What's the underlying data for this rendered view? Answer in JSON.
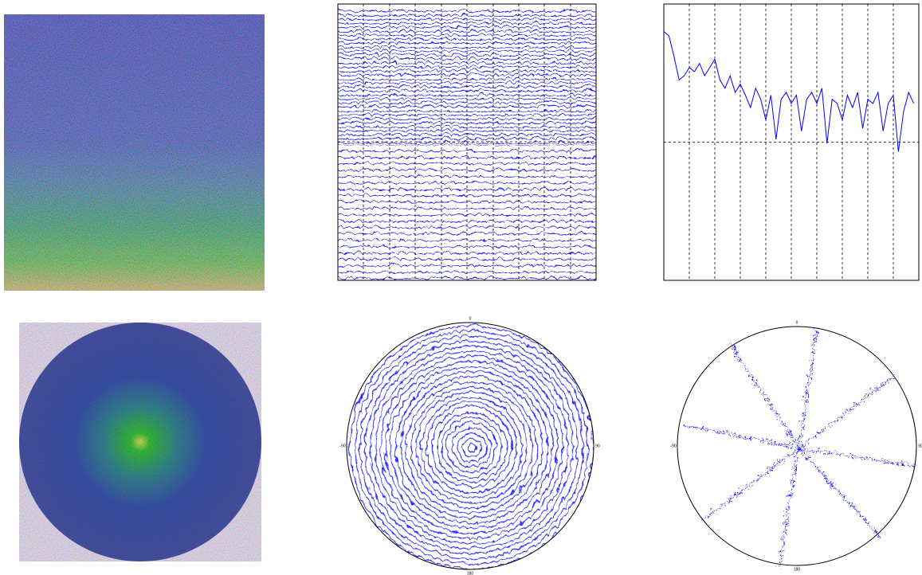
{
  "chart_data": [
    {
      "type": "line",
      "x": [
        0,
        2,
        4,
        6,
        8,
        10,
        12,
        14,
        16,
        18,
        20,
        22,
        24,
        26,
        28,
        30,
        32,
        34,
        36,
        38,
        40,
        42,
        44,
        46,
        48,
        50,
        52,
        54,
        56,
        58,
        60,
        62,
        64,
        66,
        68,
        70,
        72,
        74,
        76,
        78,
        80,
        82,
        84,
        86,
        88,
        90,
        92,
        94,
        96,
        98
      ],
      "series": [
        {
          "color": "#0000ff",
          "values": [
            0.8,
            0.77,
            0.62,
            0.45,
            0.48,
            0.54,
            0.51,
            0.57,
            0.48,
            0.54,
            0.6,
            0.45,
            0.39,
            0.48,
            0.36,
            0.42,
            0.34,
            0.25,
            0.39,
            0.31,
            0.16,
            0.34,
            0.02,
            0.31,
            0.36,
            0.28,
            0.34,
            0.08,
            0.31,
            0.36,
            0.28,
            0.39,
            -0.01,
            0.31,
            0.28,
            0.16,
            0.34,
            0.25,
            0.36,
            0.1,
            0.31,
            0.28,
            0.36,
            0.08,
            0.28,
            0.34,
            -0.07,
            0.22,
            0.36,
            0.28
          ]
        }
      ],
      "xlim": [
        0,
        100
      ],
      "xticks": [
        10,
        20,
        30,
        40,
        50,
        60,
        70,
        80,
        90
      ],
      "ylim": [
        -1,
        1
      ],
      "yticks": [
        0
      ],
      "grid": true
    },
    {
      "type": "polar",
      "angle_ticks": [
        0,
        90,
        180,
        -90
      ]
    },
    {
      "type": "polar",
      "angle_ticks": [
        0,
        90,
        180,
        -90
      ]
    }
  ]
}
